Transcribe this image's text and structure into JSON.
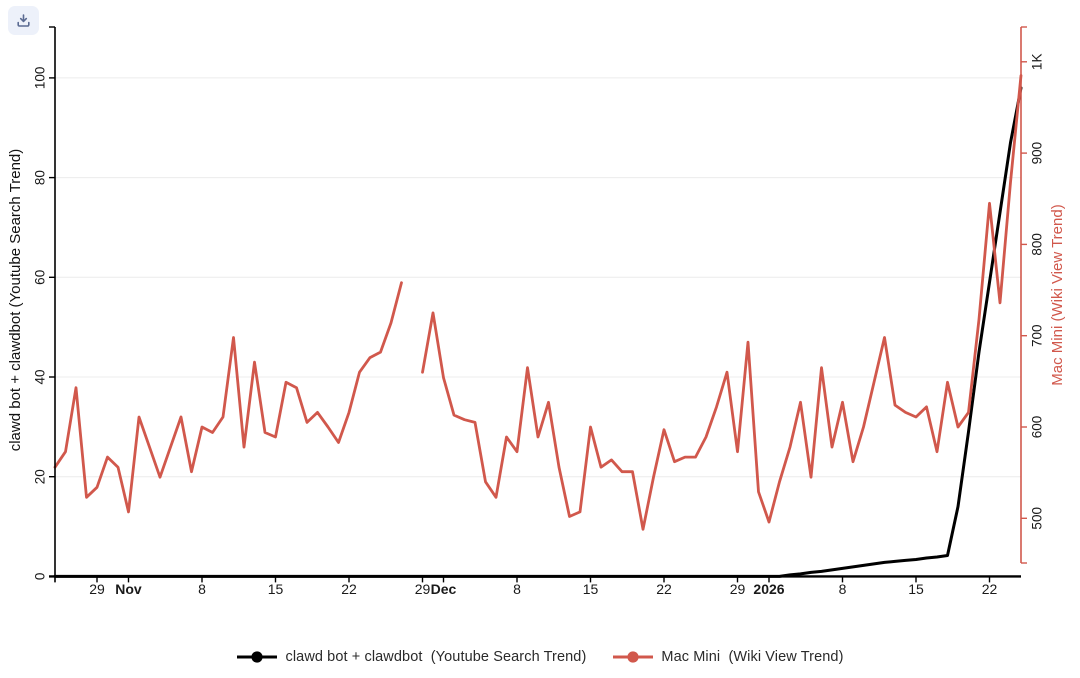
{
  "toolbar": {
    "download_label": "Download chart"
  },
  "chart_data": {
    "type": "line",
    "x_start_date": "2025-10-25",
    "x_days": 93,
    "x_ticks": [
      {
        "day": 4,
        "label": "29",
        "bold": false
      },
      {
        "day": 7,
        "label": "Nov",
        "bold": true
      },
      {
        "day": 14,
        "label": "8",
        "bold": false
      },
      {
        "day": 21,
        "label": "15",
        "bold": false
      },
      {
        "day": 28,
        "label": "22",
        "bold": false
      },
      {
        "day": 35,
        "label": "29",
        "bold": false
      },
      {
        "day": 37,
        "label": "Dec",
        "bold": true
      },
      {
        "day": 44,
        "label": "8",
        "bold": false
      },
      {
        "day": 51,
        "label": "15",
        "bold": false
      },
      {
        "day": 58,
        "label": "22",
        "bold": false
      },
      {
        "day": 65,
        "label": "29",
        "bold": false
      },
      {
        "day": 68,
        "label": "2026",
        "bold": true
      },
      {
        "day": 75,
        "label": "8",
        "bold": false
      },
      {
        "day": 82,
        "label": "15",
        "bold": false
      },
      {
        "day": 89,
        "label": "22",
        "bold": false
      }
    ],
    "y_left": {
      "title": "clawd bot + clawdbot  (Youtube Search Trend)",
      "tick_values": [
        0,
        20,
        40,
        60,
        80,
        100
      ],
      "range": [
        0,
        108
      ],
      "axis_color": "#000000",
      "tick_label_color": "#1a1a1a"
    },
    "y_right": {
      "title": "Mac Mini  (Wiki View Trend)",
      "tick_labels": [
        "500",
        "600",
        "700",
        "800",
        "900",
        "1K"
      ],
      "tick_values": [
        500,
        600,
        700,
        800,
        900,
        1000
      ],
      "range": [
        450,
        1050
      ],
      "axis_color": "#d1584c",
      "tick_label_color": "#1a1a1a"
    },
    "grid": {
      "show": true,
      "color": "#ececec",
      "at_left_values": [
        20,
        40,
        60,
        80,
        100
      ]
    },
    "legend_position": "bottom-center",
    "series": [
      {
        "name": "clawd bot + clawdbot  (Youtube Search Trend)",
        "color": "#000000",
        "axis": "left",
        "marker": "circle",
        "line_width": 3,
        "values": [
          0,
          0,
          0,
          0,
          0,
          0,
          0,
          0,
          0,
          0,
          0,
          0,
          0,
          0,
          0,
          0,
          0,
          0,
          0,
          0,
          0,
          0,
          0,
          0,
          0,
          0,
          0,
          0,
          0,
          0,
          0,
          0,
          0,
          0,
          0,
          0,
          0,
          0,
          0,
          0,
          0,
          0,
          0,
          0,
          0,
          0,
          0,
          0,
          0,
          0,
          0,
          0,
          0,
          0,
          0,
          0,
          0,
          0,
          0,
          0,
          0,
          0,
          0,
          0,
          0,
          0,
          0,
          0,
          0,
          0,
          0.3,
          0.5,
          0.8,
          1.0,
          1.3,
          1.6,
          1.9,
          2.2,
          2.5,
          2.8,
          3.0,
          3.2,
          3.4,
          3.7,
          3.9,
          4.2,
          14,
          29,
          45,
          59,
          73,
          87,
          98
        ]
      },
      {
        "name": "Mac Mini  (Wiki View Trend)",
        "color": "#d1584c",
        "axis": "right",
        "marker": "circle",
        "line_width": 2.8,
        "values": [
          556,
          573,
          643,
          523,
          534,
          567,
          556,
          507,
          611,
          578,
          545,
          578,
          611,
          551,
          600,
          594,
          611,
          698,
          578,
          671,
          594,
          589,
          649,
          643,
          605,
          616,
          600,
          583,
          616,
          660,
          676,
          682,
          714,
          758,
          null,
          660,
          725,
          654,
          613,
          608,
          605,
          540,
          523,
          589,
          573,
          665,
          589,
          627,
          556,
          502,
          507,
          600,
          556,
          564,
          551,
          551,
          488,
          545,
          597,
          562,
          567,
          567,
          589,
          622,
          660,
          573,
          693,
          529,
          496,
          540,
          578,
          627,
          545,
          665,
          578,
          627,
          562,
          600,
          649,
          698,
          624,
          616,
          611,
          622,
          573,
          649,
          600,
          616,
          718,
          845,
          736,
          868,
          985
        ]
      }
    ]
  }
}
